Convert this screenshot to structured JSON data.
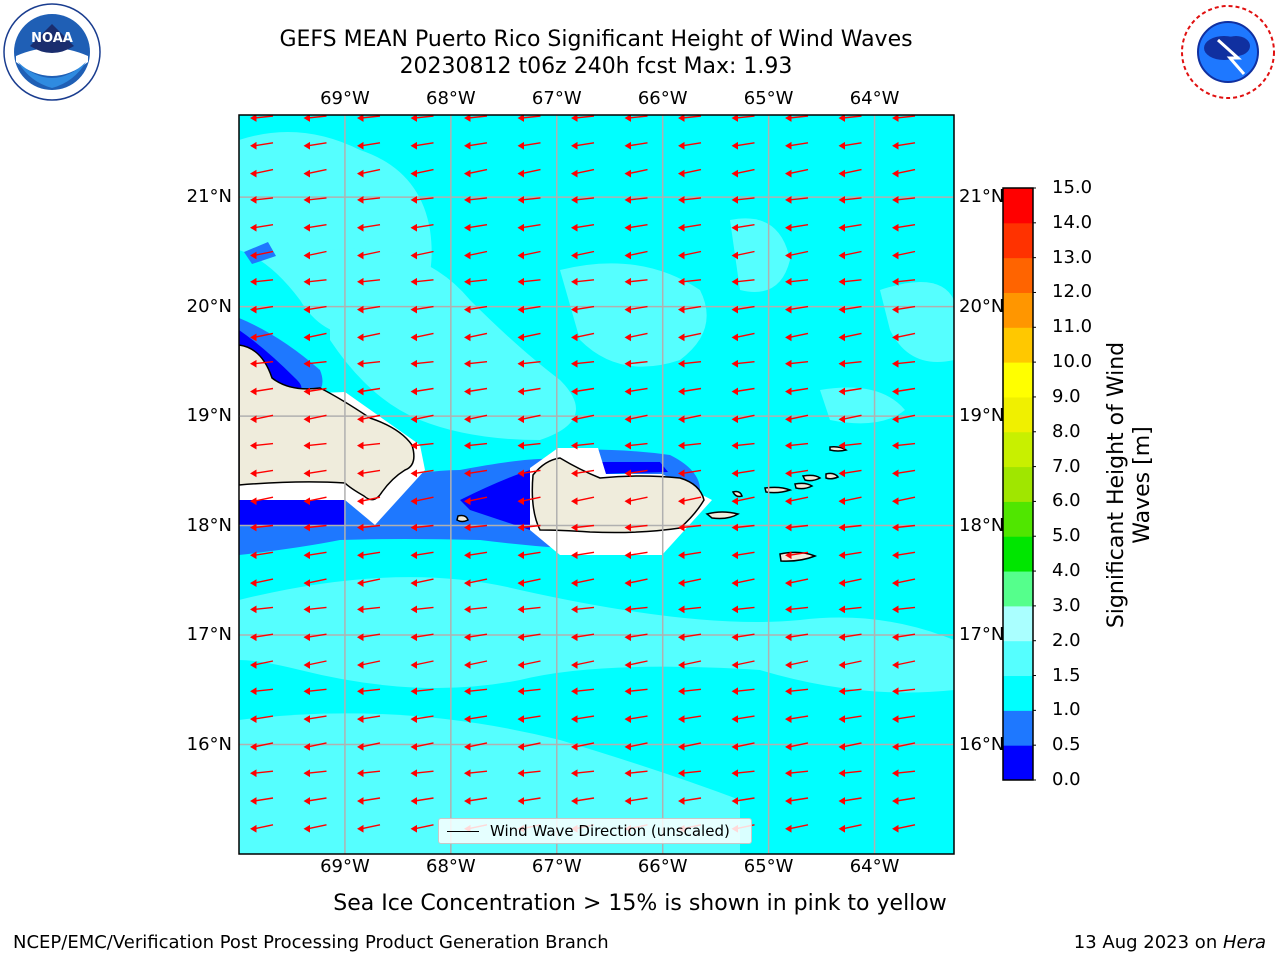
{
  "title": {
    "line1": "GEFS MEAN Puerto Rico Significant Height of Wind Waves",
    "line2": "20230812 t06z 240h fcst   Max: 1.93"
  },
  "map": {
    "lon_ticks": [
      "69°W",
      "68°W",
      "67°W",
      "66°W",
      "65°W",
      "64°W"
    ],
    "lat_ticks": [
      "21°N",
      "20°N",
      "19°N",
      "18°N",
      "17°N",
      "16°N"
    ],
    "lon_range": [
      -70.0,
      -63.25
    ],
    "lat_range": [
      15.0,
      21.75
    ],
    "ocean_color": "#00ffff",
    "land_color": "#efecdc",
    "arrow_color": "#ff0000",
    "wave_direction": "east-to-west"
  },
  "legend": {
    "label": "Wind Wave Direction (unscaled)"
  },
  "colorbar": {
    "title": "Significant Height of Wind Waves [m]",
    "levels": [
      "0.0",
      "0.5",
      "1.0",
      "1.5",
      "2.0",
      "3.0",
      "4.0",
      "5.0",
      "6.0",
      "7.0",
      "8.0",
      "9.0",
      "10.0",
      "11.0",
      "12.0",
      "13.0",
      "14.0",
      "15.0"
    ],
    "colors": [
      "#0000ff",
      "#1e78ff",
      "#00ffff",
      "#55ffff",
      "#aaffff",
      "#55ff8c",
      "#00e600",
      "#50e600",
      "#a0e600",
      "#c8f000",
      "#f0f000",
      "#ffff00",
      "#ffc800",
      "#ff9600",
      "#ff6400",
      "#ff3200",
      "#ff0000"
    ]
  },
  "notes": {
    "sea_ice": "Sea Ice Concentration > 15% is shown in pink to yellow",
    "credit": "NCEP/EMC/Verification Post Processing Product Generation Branch",
    "date_prefix": "13 Aug 2023 on ",
    "host": "Hera"
  }
}
